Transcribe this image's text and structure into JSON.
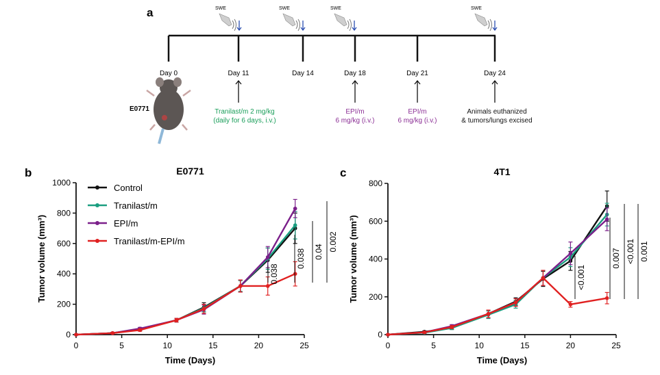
{
  "panel_a": {
    "letter": "a",
    "swe_label": "SWE",
    "mouse_label": "E0771",
    "days": [
      "Day 0",
      "Day 11",
      "Day 14",
      "Day 18",
      "Day 21",
      "Day 24"
    ],
    "swe_days": [
      "Day 11",
      "Day 14",
      "Day 18",
      "Day 24"
    ],
    "treatments": [
      {
        "day": "Day 11",
        "lines": [
          "Tranilast/m 2 mg/kg",
          "(daily for 6 days, i.v.)"
        ],
        "color": "#1a9e5a"
      },
      {
        "day": "Day 18",
        "lines": [
          "EPI/m",
          "6 mg/kg (i.v.)"
        ],
        "color": "#8b2f95"
      },
      {
        "day": "Day 21",
        "lines": [
          "EPI/m",
          "6 mg/kg (i.v.)"
        ],
        "color": "#8b2f95"
      },
      {
        "day": "Day 24",
        "lines": [
          "Animals euthanized",
          "& tumors/lungs excised"
        ],
        "color": "#111111"
      }
    ]
  },
  "colors": {
    "control": "#111111",
    "tranilast": "#1a9e80",
    "epi": "#7b1f8a",
    "combo": "#e02020"
  },
  "chart_data": [
    {
      "panel": "b",
      "type": "line",
      "title": "E0771",
      "xlabel": "Time (Days)",
      "ylabel": "Tumor volume (mm³)",
      "xlim": [
        0,
        25
      ],
      "ylim": [
        0,
        1000
      ],
      "xticks": [
        0,
        5,
        10,
        15,
        20,
        25
      ],
      "yticks": [
        0,
        200,
        400,
        600,
        800,
        1000
      ],
      "legend": "top-left",
      "series": [
        {
          "name": "Control",
          "x": [
            0,
            4,
            7,
            11,
            14,
            18,
            21,
            24
          ],
          "y": [
            0,
            10,
            35,
            95,
            180,
            320,
            490,
            700
          ],
          "err": [
            0,
            5,
            8,
            12,
            30,
            40,
            80,
            100
          ]
        },
        {
          "name": "Tranilast/m",
          "x": [
            0,
            4,
            7,
            11,
            14,
            18,
            21,
            24
          ],
          "y": [
            0,
            10,
            35,
            95,
            175,
            320,
            500,
            720
          ],
          "err": [
            0,
            5,
            8,
            12,
            25,
            35,
            70,
            90
          ]
        },
        {
          "name": "EPI/m",
          "x": [
            0,
            4,
            7,
            11,
            14,
            18,
            21,
            24
          ],
          "y": [
            0,
            10,
            40,
            95,
            165,
            320,
            510,
            830
          ],
          "err": [
            0,
            5,
            8,
            12,
            30,
            40,
            70,
            60
          ]
        },
        {
          "name": "Tranilast/m-EPI/m",
          "x": [
            0,
            4,
            7,
            11,
            14,
            18,
            21,
            24
          ],
          "y": [
            0,
            10,
            30,
            95,
            170,
            320,
            320,
            400
          ],
          "err": [
            0,
            5,
            8,
            12,
            30,
            40,
            60,
            80
          ]
        }
      ],
      "annotations": [
        "0.038",
        "0.038",
        "0.04",
        "0.002"
      ]
    },
    {
      "panel": "c",
      "type": "line",
      "title": "4T1",
      "xlabel": "Time (Days)",
      "ylabel": "Tumor volume (mm³)",
      "xlim": [
        0,
        25
      ],
      "ylim": [
        0,
        800
      ],
      "xticks": [
        0,
        5,
        10,
        15,
        20,
        25
      ],
      "yticks": [
        0,
        200,
        400,
        600,
        800
      ],
      "series": [
        {
          "name": "Control",
          "x": [
            0,
            4,
            7,
            11,
            14,
            17,
            20,
            24
          ],
          "y": [
            0,
            15,
            35,
            110,
            175,
            295,
            390,
            680
          ],
          "err": [
            0,
            5,
            8,
            20,
            20,
            40,
            50,
            80
          ]
        },
        {
          "name": "Tranilast/m",
          "x": [
            0,
            4,
            7,
            11,
            14,
            17,
            20,
            24
          ],
          "y": [
            0,
            10,
            35,
            105,
            160,
            300,
            410,
            635
          ],
          "err": [
            0,
            5,
            8,
            20,
            20,
            40,
            50,
            60
          ]
        },
        {
          "name": "EPI/m",
          "x": [
            0,
            4,
            7,
            11,
            14,
            17,
            20,
            24
          ],
          "y": [
            0,
            12,
            45,
            110,
            170,
            300,
            430,
            610
          ],
          "err": [
            0,
            5,
            8,
            20,
            20,
            40,
            60,
            60
          ]
        },
        {
          "name": "Tranilast/m-EPI/m",
          "x": [
            0,
            4,
            7,
            11,
            14,
            17,
            20,
            24
          ],
          "y": [
            0,
            12,
            40,
            110,
            170,
            300,
            160,
            193
          ],
          "err": [
            0,
            5,
            8,
            20,
            20,
            40,
            15,
            30
          ]
        }
      ],
      "annotations": [
        "<0.001",
        "0.007",
        "<0.001",
        "0.001"
      ]
    }
  ]
}
